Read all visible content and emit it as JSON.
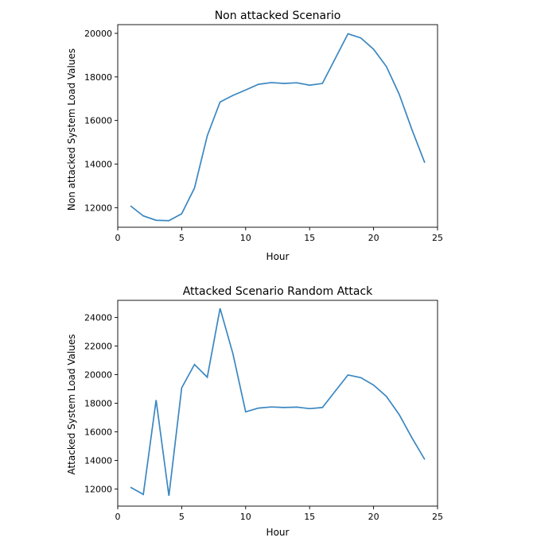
{
  "chart_data": [
    {
      "type": "line",
      "title": "Non attacked Scenario",
      "xlabel": "Hour",
      "ylabel": "Non attacked System Load Values",
      "xlim": [
        0,
        25
      ],
      "ylim": [
        11100,
        20400
      ],
      "xticks": [
        0,
        5,
        10,
        15,
        20,
        25
      ],
      "yticks": [
        12000,
        14000,
        16000,
        18000,
        20000
      ],
      "grid": false,
      "line_color": "#3a87c1",
      "series": [
        {
          "x": [
            1,
            2,
            3,
            4,
            5,
            6,
            7,
            8,
            9,
            10,
            11,
            12,
            13,
            14,
            15,
            16,
            17,
            18,
            19,
            20,
            21,
            22,
            23,
            24
          ],
          "values": [
            12080,
            11620,
            11420,
            11400,
            11720,
            12900,
            15300,
            16850,
            17150,
            17400,
            17660,
            17740,
            17700,
            17730,
            17620,
            17700,
            18840,
            19980,
            19790,
            19270,
            18480,
            17210,
            15580,
            14060
          ]
        }
      ]
    },
    {
      "type": "line",
      "title": "Attacked Scenario Random Attack",
      "xlabel": "Hour",
      "ylabel": "Attacked System Load Values",
      "xlim": [
        0,
        25
      ],
      "ylim": [
        10800,
        25200
      ],
      "xticks": [
        0,
        5,
        10,
        15,
        20,
        25
      ],
      "yticks": [
        12000,
        14000,
        16000,
        18000,
        20000,
        22000,
        24000
      ],
      "grid": false,
      "line_color": "#3a87c1",
      "series": [
        {
          "x": [
            1,
            2,
            3,
            4,
            5,
            6,
            7,
            8,
            9,
            10,
            11,
            12,
            13,
            14,
            15,
            16,
            17,
            18,
            19,
            20,
            21,
            22,
            23,
            24
          ],
          "values": [
            12120,
            11620,
            18220,
            11520,
            19080,
            20710,
            19820,
            24640,
            21480,
            17400,
            17660,
            17740,
            17700,
            17730,
            17620,
            17700,
            18840,
            19980,
            19790,
            19270,
            18480,
            17210,
            15580,
            14060
          ]
        }
      ]
    }
  ]
}
